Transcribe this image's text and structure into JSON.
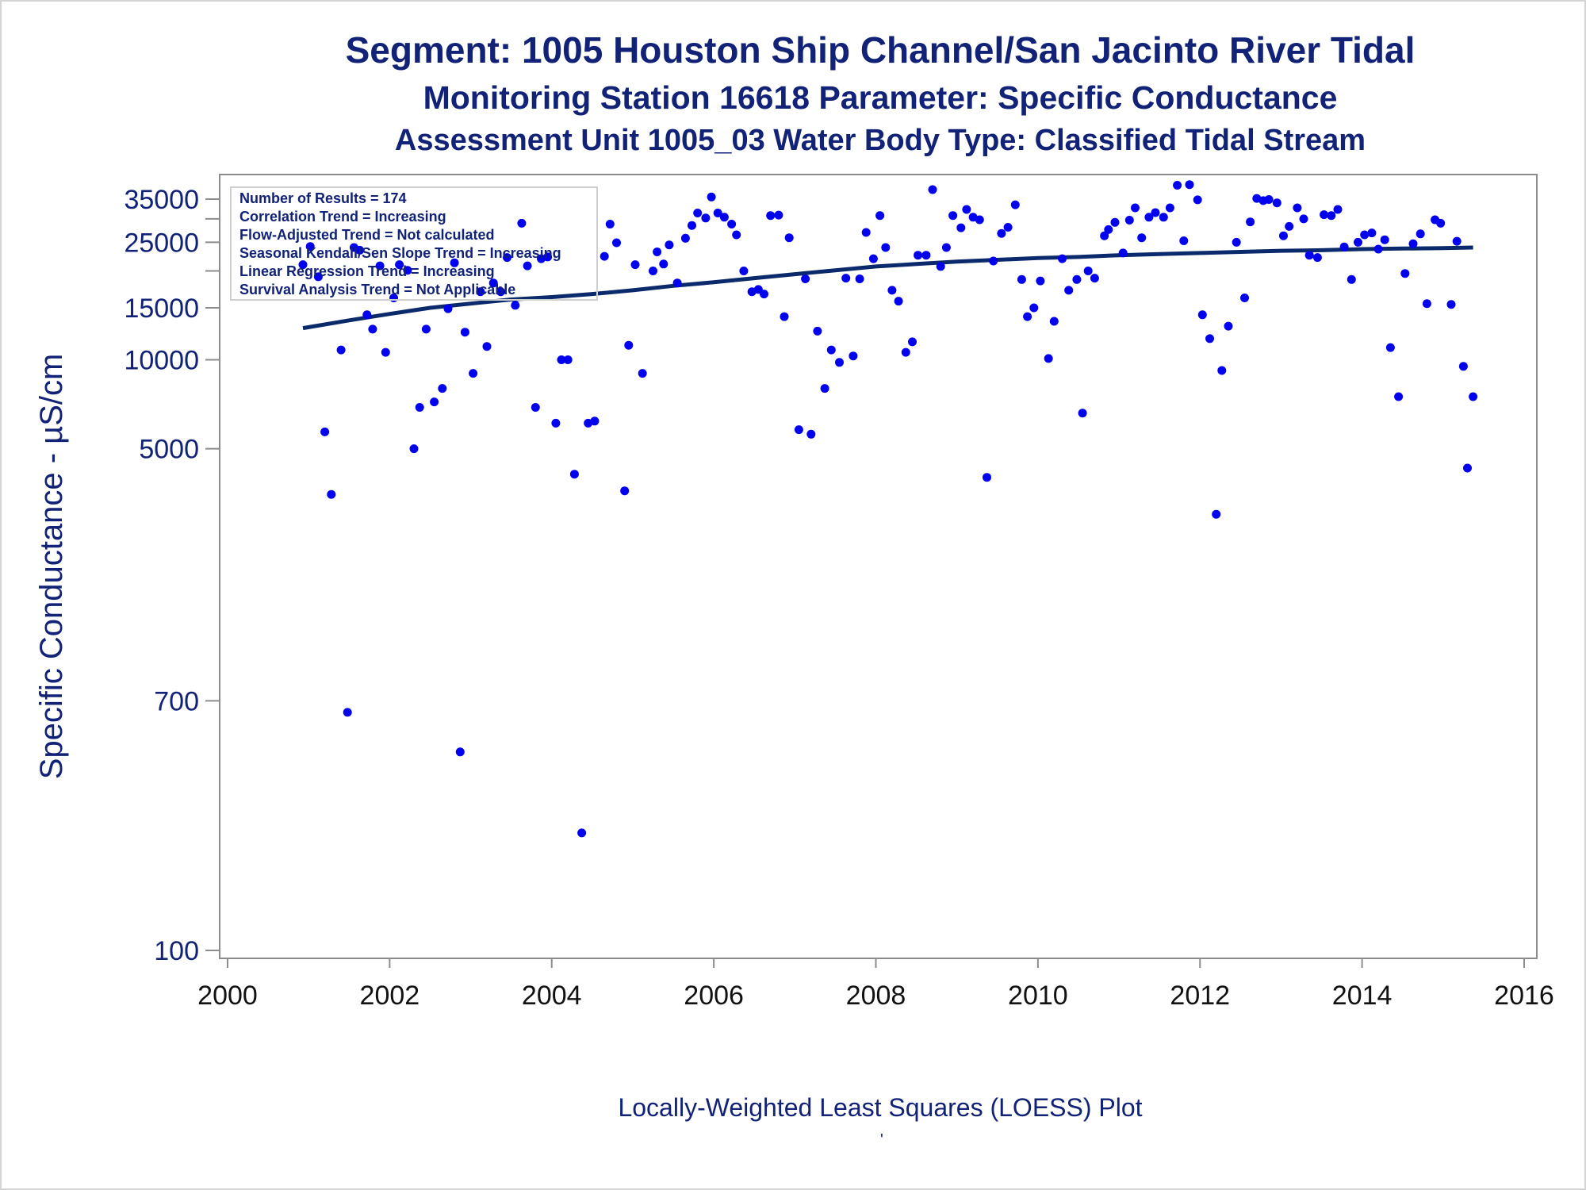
{
  "titles": {
    "line1": "Segment: 1005  Houston Ship Channel/San Jacinto River Tidal",
    "line2": "Monitoring Station 16618 Parameter: Specific Conductance",
    "line3": "Assessment Unit 1005_03   Water Body Type: Classified Tidal Stream"
  },
  "footer": {
    "caption": "Locally-Weighted Least Squares (LOESS) Plot",
    "tick_mark": "'"
  },
  "colors": {
    "text": "#112277",
    "points": "#0000ee",
    "trend_line": "#0b2a6b",
    "axis": "#8c8c8c"
  },
  "chart_data": {
    "type": "scatter",
    "xlabel": "",
    "ylabel": "Specific Conductance -  µS/cm",
    "yscale": "log",
    "xlim": [
      2000,
      2016
    ],
    "ylim": [
      100,
      43000
    ],
    "x_ticks": [
      2000,
      2002,
      2004,
      2006,
      2008,
      2010,
      2012,
      2014,
      2016
    ],
    "y_ticks": [
      100,
      700,
      5000,
      10000,
      15000,
      25000,
      35000
    ],
    "y_minor_ticks": [
      20000,
      30000
    ],
    "legend_placement": "top-left",
    "stats_box": [
      "Number of Results = 174",
      "Correlation Trend = Increasing",
      "Flow-Adjusted Trend = Not calculated",
      "Seasonal Kendall/Sen Slope Trend = Increasing",
      "Linear Regression Trend = Increasing",
      "Survival Analysis Trend = Not Applicable"
    ],
    "series": [
      {
        "type": "scatter",
        "points": [
          [
            2000.93,
            21000
          ],
          [
            2001.02,
            24200
          ],
          [
            2001.12,
            19100
          ],
          [
            2001.2,
            5700
          ],
          [
            2001.28,
            3500
          ],
          [
            2001.4,
            10800
          ],
          [
            2001.48,
            640
          ],
          [
            2001.56,
            24000
          ],
          [
            2001.63,
            23500
          ],
          [
            2001.72,
            14200
          ],
          [
            2001.79,
            12700
          ],
          [
            2001.88,
            20800
          ],
          [
            2001.95,
            10600
          ],
          [
            2002.05,
            16200
          ],
          [
            2002.12,
            21000
          ],
          [
            2002.22,
            20100
          ],
          [
            2002.3,
            5000
          ],
          [
            2002.37,
            6900
          ],
          [
            2002.45,
            12700
          ],
          [
            2002.55,
            7200
          ],
          [
            2002.65,
            8000
          ],
          [
            2002.72,
            14900
          ],
          [
            2002.8,
            21300
          ],
          [
            2002.87,
            470
          ],
          [
            2002.93,
            12400
          ],
          [
            2003.03,
            9000
          ],
          [
            2003.12,
            17000
          ],
          [
            2003.2,
            11100
          ],
          [
            2003.28,
            18200
          ],
          [
            2003.37,
            17000
          ],
          [
            2003.45,
            22200
          ],
          [
            2003.55,
            15300
          ],
          [
            2003.63,
            29000
          ],
          [
            2003.7,
            20800
          ],
          [
            2003.8,
            6900
          ],
          [
            2003.87,
            22000
          ],
          [
            2003.95,
            22300
          ],
          [
            2004.05,
            6100
          ],
          [
            2004.12,
            10000
          ],
          [
            2004.2,
            10000
          ],
          [
            2004.28,
            4100
          ],
          [
            2004.37,
            250
          ],
          [
            2004.45,
            6100
          ],
          [
            2004.53,
            6200
          ],
          [
            2004.65,
            22400
          ],
          [
            2004.72,
            28800
          ],
          [
            2004.8,
            24900
          ],
          [
            2004.9,
            3600
          ],
          [
            2004.95,
            11200
          ],
          [
            2005.03,
            21000
          ],
          [
            2005.12,
            9000
          ],
          [
            2005.25,
            20000
          ],
          [
            2005.3,
            23200
          ],
          [
            2005.38,
            21100
          ],
          [
            2005.45,
            24500
          ],
          [
            2005.55,
            18200
          ],
          [
            2005.65,
            25800
          ],
          [
            2005.73,
            28500
          ],
          [
            2005.8,
            31400
          ],
          [
            2005.9,
            30200
          ],
          [
            2005.97,
            35600
          ],
          [
            2006.05,
            31400
          ],
          [
            2006.13,
            30400
          ],
          [
            2006.22,
            28800
          ],
          [
            2006.28,
            26500
          ],
          [
            2006.37,
            20000
          ],
          [
            2006.47,
            17000
          ],
          [
            2006.55,
            17300
          ],
          [
            2006.62,
            16700
          ],
          [
            2006.7,
            30800
          ],
          [
            2006.8,
            30900
          ],
          [
            2006.87,
            14000
          ],
          [
            2006.93,
            25900
          ],
          [
            2007.05,
            5800
          ],
          [
            2007.13,
            18800
          ],
          [
            2007.2,
            5600
          ],
          [
            2007.28,
            12500
          ],
          [
            2007.37,
            8000
          ],
          [
            2007.45,
            10800
          ],
          [
            2007.55,
            9800
          ],
          [
            2007.63,
            18900
          ],
          [
            2007.72,
            10300
          ],
          [
            2007.8,
            18800
          ],
          [
            2007.88,
            27000
          ],
          [
            2007.97,
            22000
          ],
          [
            2008.05,
            30800
          ],
          [
            2008.12,
            24000
          ],
          [
            2008.2,
            17200
          ],
          [
            2008.28,
            15800
          ],
          [
            2008.37,
            10600
          ],
          [
            2008.45,
            11500
          ],
          [
            2008.52,
            22600
          ],
          [
            2008.62,
            22600
          ],
          [
            2008.7,
            37700
          ],
          [
            2008.8,
            20700
          ],
          [
            2008.87,
            24000
          ],
          [
            2008.95,
            30800
          ],
          [
            2009.05,
            28000
          ],
          [
            2009.12,
            32300
          ],
          [
            2009.2,
            30400
          ],
          [
            2009.28,
            29800
          ],
          [
            2009.37,
            4000
          ],
          [
            2009.45,
            21600
          ],
          [
            2009.55,
            26800
          ],
          [
            2009.63,
            28100
          ],
          [
            2009.72,
            33500
          ],
          [
            2009.8,
            18700
          ],
          [
            2009.87,
            14000
          ],
          [
            2009.95,
            15000
          ],
          [
            2010.03,
            18500
          ],
          [
            2010.13,
            10100
          ],
          [
            2010.2,
            13500
          ],
          [
            2010.3,
            22000
          ],
          [
            2010.38,
            17200
          ],
          [
            2010.48,
            18700
          ],
          [
            2010.55,
            6600
          ],
          [
            2010.62,
            20000
          ],
          [
            2010.7,
            18900
          ],
          [
            2010.82,
            26300
          ],
          [
            2010.87,
            27600
          ],
          [
            2010.95,
            29200
          ],
          [
            2011.05,
            23000
          ],
          [
            2011.13,
            29700
          ],
          [
            2011.2,
            32700
          ],
          [
            2011.28,
            25900
          ],
          [
            2011.37,
            30400
          ],
          [
            2011.45,
            31500
          ],
          [
            2011.55,
            30400
          ],
          [
            2011.63,
            32700
          ],
          [
            2011.72,
            39000
          ],
          [
            2011.8,
            25300
          ],
          [
            2011.87,
            39200
          ],
          [
            2011.97,
            34800
          ],
          [
            2012.03,
            14200
          ],
          [
            2012.12,
            11800
          ],
          [
            2012.2,
            3000
          ],
          [
            2012.27,
            9200
          ],
          [
            2012.35,
            13000
          ],
          [
            2012.45,
            25000
          ],
          [
            2012.55,
            16200
          ],
          [
            2012.62,
            29300
          ],
          [
            2012.7,
            35200
          ],
          [
            2012.78,
            34600
          ],
          [
            2012.85,
            34900
          ],
          [
            2012.95,
            34000
          ],
          [
            2013.03,
            26300
          ],
          [
            2013.1,
            28300
          ],
          [
            2013.2,
            32700
          ],
          [
            2013.28,
            30000
          ],
          [
            2013.35,
            22600
          ],
          [
            2013.45,
            22200
          ],
          [
            2013.53,
            31000
          ],
          [
            2013.62,
            30800
          ],
          [
            2013.7,
            32300
          ],
          [
            2013.78,
            24100
          ],
          [
            2013.87,
            18700
          ],
          [
            2013.95,
            25000
          ],
          [
            2014.03,
            26500
          ],
          [
            2014.12,
            26900
          ],
          [
            2014.2,
            23700
          ],
          [
            2014.28,
            25500
          ],
          [
            2014.35,
            11000
          ],
          [
            2014.45,
            7500
          ],
          [
            2014.53,
            19600
          ],
          [
            2014.63,
            24700
          ],
          [
            2014.72,
            26700
          ],
          [
            2014.8,
            15500
          ],
          [
            2014.9,
            29800
          ],
          [
            2014.97,
            29000
          ],
          [
            2015.1,
            15400
          ],
          [
            2015.17,
            25200
          ],
          [
            2015.25,
            9500
          ],
          [
            2015.3,
            4300
          ],
          [
            2015.37,
            7500
          ]
        ]
      },
      {
        "type": "line",
        "points": [
          [
            2000.93,
            12800
          ],
          [
            2001.5,
            13600
          ],
          [
            2002.0,
            14300
          ],
          [
            2002.5,
            15000
          ],
          [
            2003.0,
            15500
          ],
          [
            2003.5,
            16000
          ],
          [
            2004.0,
            16300
          ],
          [
            2004.5,
            16700
          ],
          [
            2005.0,
            17200
          ],
          [
            2005.5,
            17800
          ],
          [
            2006.0,
            18300
          ],
          [
            2006.5,
            18900
          ],
          [
            2007.0,
            19500
          ],
          [
            2007.5,
            20100
          ],
          [
            2008.0,
            20700
          ],
          [
            2008.5,
            21100
          ],
          [
            2009.0,
            21500
          ],
          [
            2009.5,
            21800
          ],
          [
            2010.0,
            22100
          ],
          [
            2010.5,
            22300
          ],
          [
            2011.0,
            22600
          ],
          [
            2011.5,
            22800
          ],
          [
            2012.0,
            23000
          ],
          [
            2012.5,
            23200
          ],
          [
            2013.0,
            23400
          ],
          [
            2013.5,
            23500
          ],
          [
            2014.0,
            23700
          ],
          [
            2014.5,
            23800
          ],
          [
            2015.0,
            23900
          ],
          [
            2015.37,
            24000
          ]
        ]
      }
    ]
  }
}
